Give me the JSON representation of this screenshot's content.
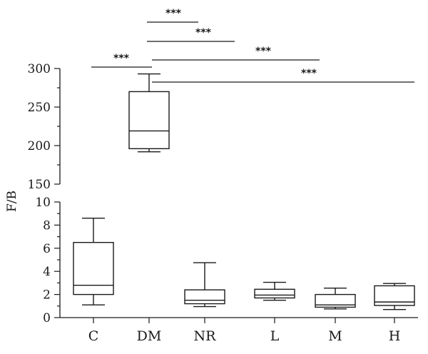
{
  "chart_data": {
    "type": "box",
    "ylabel": "F/B",
    "categories": [
      "C",
      "DM",
      "NR",
      "L",
      "M",
      "H"
    ],
    "y_axis_broken": true,
    "lower_axis": {
      "ylim": [
        0,
        10
      ],
      "ticks": [
        "0",
        "2",
        "4",
        "6",
        "8",
        "10"
      ]
    },
    "upper_axis": {
      "ylim": [
        150,
        300
      ],
      "ticks": [
        "150",
        "200",
        "250",
        "300"
      ]
    },
    "boxes": [
      {
        "category": "C",
        "min": 1.1,
        "q1": 2.0,
        "median": 2.8,
        "q3": 6.5,
        "max": 8.6
      },
      {
        "category": "DM",
        "min": 192,
        "q1": 196,
        "median": 219,
        "q3": 270,
        "max": 293
      },
      {
        "category": "NR",
        "min": 0.95,
        "q1": 1.2,
        "median": 1.5,
        "q3": 2.4,
        "max": 4.75
      },
      {
        "category": "L",
        "min": 1.5,
        "q1": 1.7,
        "median": 1.95,
        "q3": 2.45,
        "max": 3.05
      },
      {
        "category": "M",
        "min": 0.75,
        "q1": 0.9,
        "median": 1.1,
        "q3": 2.0,
        "max": 2.55
      },
      {
        "category": "H",
        "min": 0.7,
        "q1": 1.05,
        "median": 1.35,
        "q3": 2.75,
        "max": 2.95
      }
    ],
    "significance": [
      {
        "from": "C",
        "to": "DM",
        "label": "***"
      },
      {
        "from": "DM",
        "to": "NR",
        "label": "***"
      },
      {
        "from": "DM",
        "to": "L",
        "label": "***"
      },
      {
        "from": "DM",
        "to": "M",
        "label": "***"
      },
      {
        "from": "DM",
        "to": "H",
        "label": "***"
      }
    ]
  }
}
